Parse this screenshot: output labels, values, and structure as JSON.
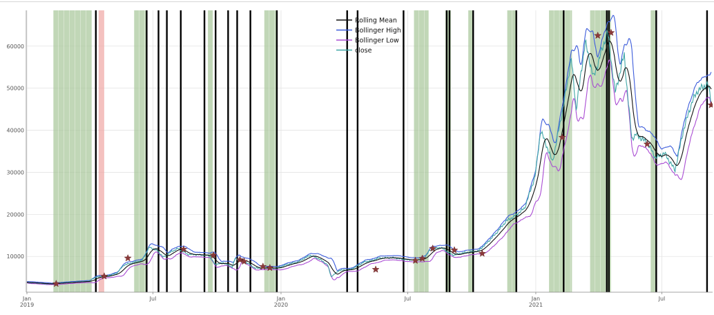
{
  "chart_data": {
    "type": "line",
    "x_domain": [
      "2018-12-31",
      "2021-09-12"
    ],
    "ylim": [
      1500,
      68500
    ],
    "grid": true,
    "legend_position": "top-center",
    "y_ticks": [
      10000,
      20000,
      30000,
      40000,
      50000,
      60000
    ],
    "y_tick_labels": [
      "10000",
      "20000",
      "30000",
      "40000",
      "50000",
      "60000"
    ],
    "x_ticks": [
      {
        "date": "2019-01-01",
        "label": "Jan",
        "sublabel": "2019"
      },
      {
        "date": "2019-07-01",
        "label": "Jul",
        "sublabel": ""
      },
      {
        "date": "2020-01-01",
        "label": "Jan",
        "sublabel": "2020"
      },
      {
        "date": "2020-07-01",
        "label": "Jul",
        "sublabel": ""
      },
      {
        "date": "2021-01-01",
        "label": "Jan",
        "sublabel": "2021"
      },
      {
        "date": "2021-07-01",
        "label": "Jul",
        "sublabel": ""
      }
    ],
    "close": {
      "name": "close",
      "color": "#3fa6a6",
      "points": [
        [
          "2019-01-01",
          3800
        ],
        [
          "2019-01-15",
          3650
        ],
        [
          "2019-02-01",
          3450
        ],
        [
          "2019-02-20",
          3700
        ],
        [
          "2019-03-10",
          3900
        ],
        [
          "2019-03-31",
          4100
        ],
        [
          "2019-04-10",
          5100
        ],
        [
          "2019-04-25",
          5300
        ],
        [
          "2019-05-10",
          6000
        ],
        [
          "2019-05-20",
          7900
        ],
        [
          "2019-06-01",
          8500
        ],
        [
          "2019-06-15",
          9000
        ],
        [
          "2019-06-26",
          12200
        ],
        [
          "2019-07-08",
          11300
        ],
        [
          "2019-07-16",
          9800
        ],
        [
          "2019-07-28",
          11200
        ],
        [
          "2019-08-06",
          11900
        ],
        [
          "2019-08-20",
          10500
        ],
        [
          "2019-09-05",
          10400
        ],
        [
          "2019-09-20",
          10200
        ],
        [
          "2019-09-28",
          8100
        ],
        [
          "2019-10-10",
          8500
        ],
        [
          "2019-10-23",
          7500
        ],
        [
          "2019-10-27",
          9500
        ],
        [
          "2019-11-10",
          8800
        ],
        [
          "2019-11-25",
          7200
        ],
        [
          "2019-12-10",
          7300
        ],
        [
          "2019-12-25",
          7200
        ],
        [
          "2020-01-10",
          8100
        ],
        [
          "2020-01-25",
          8700
        ],
        [
          "2020-02-12",
          10300
        ],
        [
          "2020-02-26",
          9300
        ],
        [
          "2020-03-08",
          8000
        ],
        [
          "2020-03-13",
          5200
        ],
        [
          "2020-03-25",
          6700
        ],
        [
          "2020-04-10",
          6900
        ],
        [
          "2020-04-30",
          8700
        ],
        [
          "2020-05-10",
          9000
        ],
        [
          "2020-05-20",
          9600
        ],
        [
          "2020-06-10",
          9700
        ],
        [
          "2020-06-30",
          9200
        ],
        [
          "2020-07-15",
          9200
        ],
        [
          "2020-07-25",
          9700
        ],
        [
          "2020-08-02",
          11500
        ],
        [
          "2020-08-17",
          12200
        ],
        [
          "2020-09-04",
          10300
        ],
        [
          "2020-09-20",
          10900
        ],
        [
          "2020-10-10",
          11300
        ],
        [
          "2020-10-21",
          12900
        ],
        [
          "2020-11-05",
          15500
        ],
        [
          "2020-11-20",
          18500
        ],
        [
          "2020-12-01",
          19500
        ],
        [
          "2020-12-16",
          21500
        ],
        [
          "2020-12-31",
          29000
        ],
        [
          "2021-01-08",
          40000
        ],
        [
          "2021-01-25",
          32500
        ],
        [
          "2021-02-10",
          46000
        ],
        [
          "2021-02-21",
          57000
        ],
        [
          "2021-02-28",
          45000
        ],
        [
          "2021-03-13",
          61000
        ],
        [
          "2021-03-25",
          52500
        ],
        [
          "2021-04-14",
          63500
        ],
        [
          "2021-04-25",
          49000
        ],
        [
          "2021-05-08",
          58000
        ],
        [
          "2021-05-12",
          50000
        ],
        [
          "2021-05-19",
          38000
        ],
        [
          "2021-05-25",
          39000
        ],
        [
          "2021-06-10",
          37000
        ],
        [
          "2021-06-22",
          33500
        ],
        [
          "2021-07-05",
          34500
        ],
        [
          "2021-07-20",
          30500
        ],
        [
          "2021-08-01",
          40000
        ],
        [
          "2021-08-14",
          47000
        ],
        [
          "2021-08-22",
          49500
        ],
        [
          "2021-09-05",
          51000
        ],
        [
          "2021-09-10",
          47000
        ]
      ]
    },
    "rolling_mean": {
      "name": "Rolling Mean",
      "color": "#111111"
    },
    "bollinger_high": {
      "name": "Bollinger High",
      "color": "#3b5bdb"
    },
    "bollinger_low": {
      "name": "Bollinger Low",
      "color": "#a94bd3"
    },
    "shaded_regions": [
      {
        "start": "2019-02-08",
        "end": "2019-04-04",
        "color": "#a9c79b"
      },
      {
        "start": "2019-04-14",
        "end": "2019-04-22",
        "color": "#f0a9a6"
      },
      {
        "start": "2019-06-04",
        "end": "2019-06-21",
        "color": "#a9c79b"
      },
      {
        "start": "2019-09-18",
        "end": "2019-09-25",
        "color": "#a9c79b"
      },
      {
        "start": "2019-12-08",
        "end": "2019-12-26",
        "color": "#a9c79b"
      },
      {
        "start": "2020-07-10",
        "end": "2020-07-31",
        "color": "#a9c79b"
      },
      {
        "start": "2020-08-24",
        "end": "2020-09-01",
        "color": "#a9c79b"
      },
      {
        "start": "2020-09-26",
        "end": "2020-10-02",
        "color": "#a9c79b"
      },
      {
        "start": "2020-11-21",
        "end": "2020-12-03",
        "color": "#a9c79b"
      },
      {
        "start": "2021-01-20",
        "end": "2021-02-22",
        "color": "#a9c79b"
      },
      {
        "start": "2021-03-20",
        "end": "2021-04-19",
        "color": "#a9c79b"
      },
      {
        "start": "2021-06-15",
        "end": "2021-06-22",
        "color": "#a9c79b"
      }
    ],
    "vertical_lines": [
      "2019-04-10",
      "2019-06-22",
      "2019-07-09",
      "2019-07-21",
      "2019-08-10",
      "2019-09-13",
      "2019-09-29",
      "2019-10-17",
      "2019-10-30",
      "2019-11-18",
      "2019-12-26",
      "2020-04-05",
      "2020-04-20",
      "2020-06-25",
      "2020-08-26",
      "2020-08-30",
      "2020-10-03",
      "2020-12-04",
      "2021-02-10",
      "2021-04-13",
      "2021-04-16",
      "2021-06-23",
      "2021-09-04"
    ],
    "vertical_line_color": "#000000",
    "markers": {
      "color": "#8b3a3a",
      "points": [
        [
          "2019-02-12",
          3500
        ],
        [
          "2019-04-22",
          5300
        ],
        [
          "2019-05-26",
          9600
        ],
        [
          "2019-08-14",
          11700
        ],
        [
          "2019-09-26",
          10300
        ],
        [
          "2019-11-03",
          9200
        ],
        [
          "2019-11-09",
          8800
        ],
        [
          "2019-12-06",
          7600
        ],
        [
          "2019-12-16",
          7300
        ],
        [
          "2020-05-16",
          6900
        ],
        [
          "2020-07-12",
          9000
        ],
        [
          "2020-07-22",
          9500
        ],
        [
          "2020-08-06",
          11900
        ],
        [
          "2020-09-06",
          11500
        ],
        [
          "2020-10-16",
          10700
        ],
        [
          "2021-02-08",
          38300
        ],
        [
          "2021-03-31",
          62500
        ],
        [
          "2021-04-19",
          63200
        ],
        [
          "2021-06-10",
          36700
        ],
        [
          "2021-09-10",
          46000
        ]
      ]
    }
  }
}
